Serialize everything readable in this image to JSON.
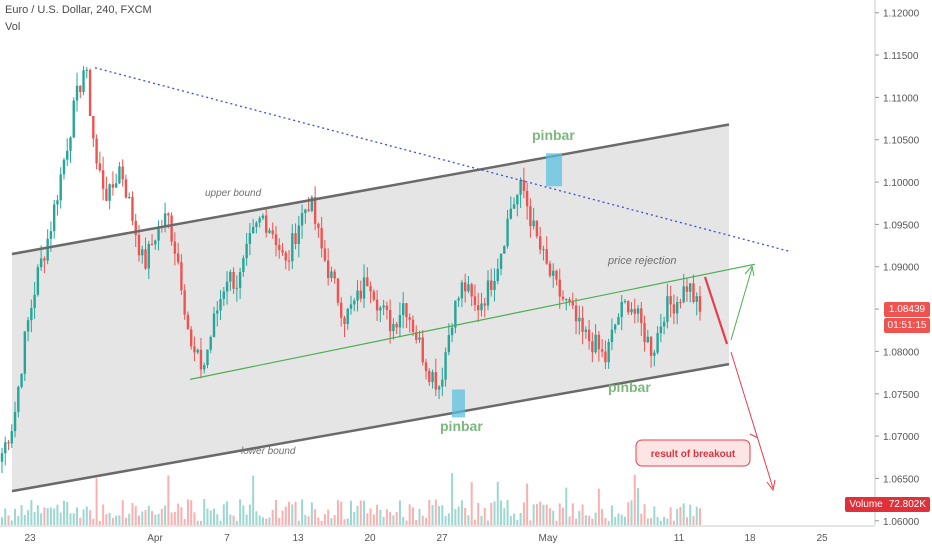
{
  "header": {
    "symbol_line": "Euro / U.S. Dollar, 240, FXCM",
    "indicator": "Vol"
  },
  "price_axis": {
    "ticks": [
      "1.12000",
      "1.11500",
      "1.11000",
      "1.10500",
      "1.10000",
      "1.09500",
      "1.09000",
      "1.08500",
      "1.08000",
      "1.07500",
      "1.07000",
      "1.06500",
      "1.06000"
    ],
    "current_price": "1.08439",
    "countdown": "01:51:15"
  },
  "volume_label": {
    "name": "Volume",
    "value": "72.802K"
  },
  "colors": {
    "up": "#26a69a",
    "down": "#ef5350",
    "channel_fill": "#dcdcdc",
    "bound_line": "#6a6a6a",
    "trendline_dotted": "#3d4fd6",
    "rejection_line": "#4caf50",
    "pinbar_text": "#7cb87e",
    "pinbar_highlight": "#5bc0de",
    "breakout": "#e83e4c"
  },
  "annotations": {
    "upper_bound": "upper bound",
    "lower_bound": "lower bound",
    "price_rejection": "price rejection",
    "pinbar_1": "pinbar",
    "pinbar_2": "pinbar",
    "pinbar_3": "pinbar",
    "breakout": "result of breakout"
  },
  "chart_data": {
    "type": "candlestick",
    "title": "Euro / U.S. Dollar, 240, FXCM",
    "x_ticks": [
      "23",
      "Apr",
      "7",
      "13",
      "20",
      "27",
      "May",
      "11",
      "18",
      "25"
    ],
    "ylim": [
      1.0595,
      1.1215
    ],
    "upper_bound": [
      [
        1.0915,
        1.1068
      ]
    ],
    "lower_bound": [
      [
        1.0635,
        1.0785
      ]
    ],
    "dotted_trendline": [
      1.1135,
      1.0918
    ],
    "rejection_line": [
      1.0767,
      1.0903
    ],
    "closes": [
      1.068,
      1.072,
      1.082,
      1.089,
      1.094,
      1.101,
      1.108,
      1.114,
      1.102,
      1.098,
      1.102,
      1.096,
      1.09,
      1.094,
      1.096,
      1.09,
      1.08,
      1.078,
      1.084,
      1.089,
      1.088,
      1.093,
      1.096,
      1.094,
      1.09,
      1.095,
      1.098,
      1.092,
      1.088,
      1.084,
      1.086,
      1.089,
      1.085,
      1.083,
      1.086,
      1.082,
      1.078,
      1.076,
      1.084,
      1.088,
      1.085,
      1.087,
      1.091,
      1.097,
      1.0995,
      1.094,
      1.09,
      1.087,
      1.085,
      1.082,
      1.081,
      1.079,
      1.084,
      1.086,
      1.083,
      1.08,
      1.085,
      1.086,
      1.088,
      1.0844
    ],
    "last_price": 1.08439,
    "volume_last": "72.802K"
  }
}
